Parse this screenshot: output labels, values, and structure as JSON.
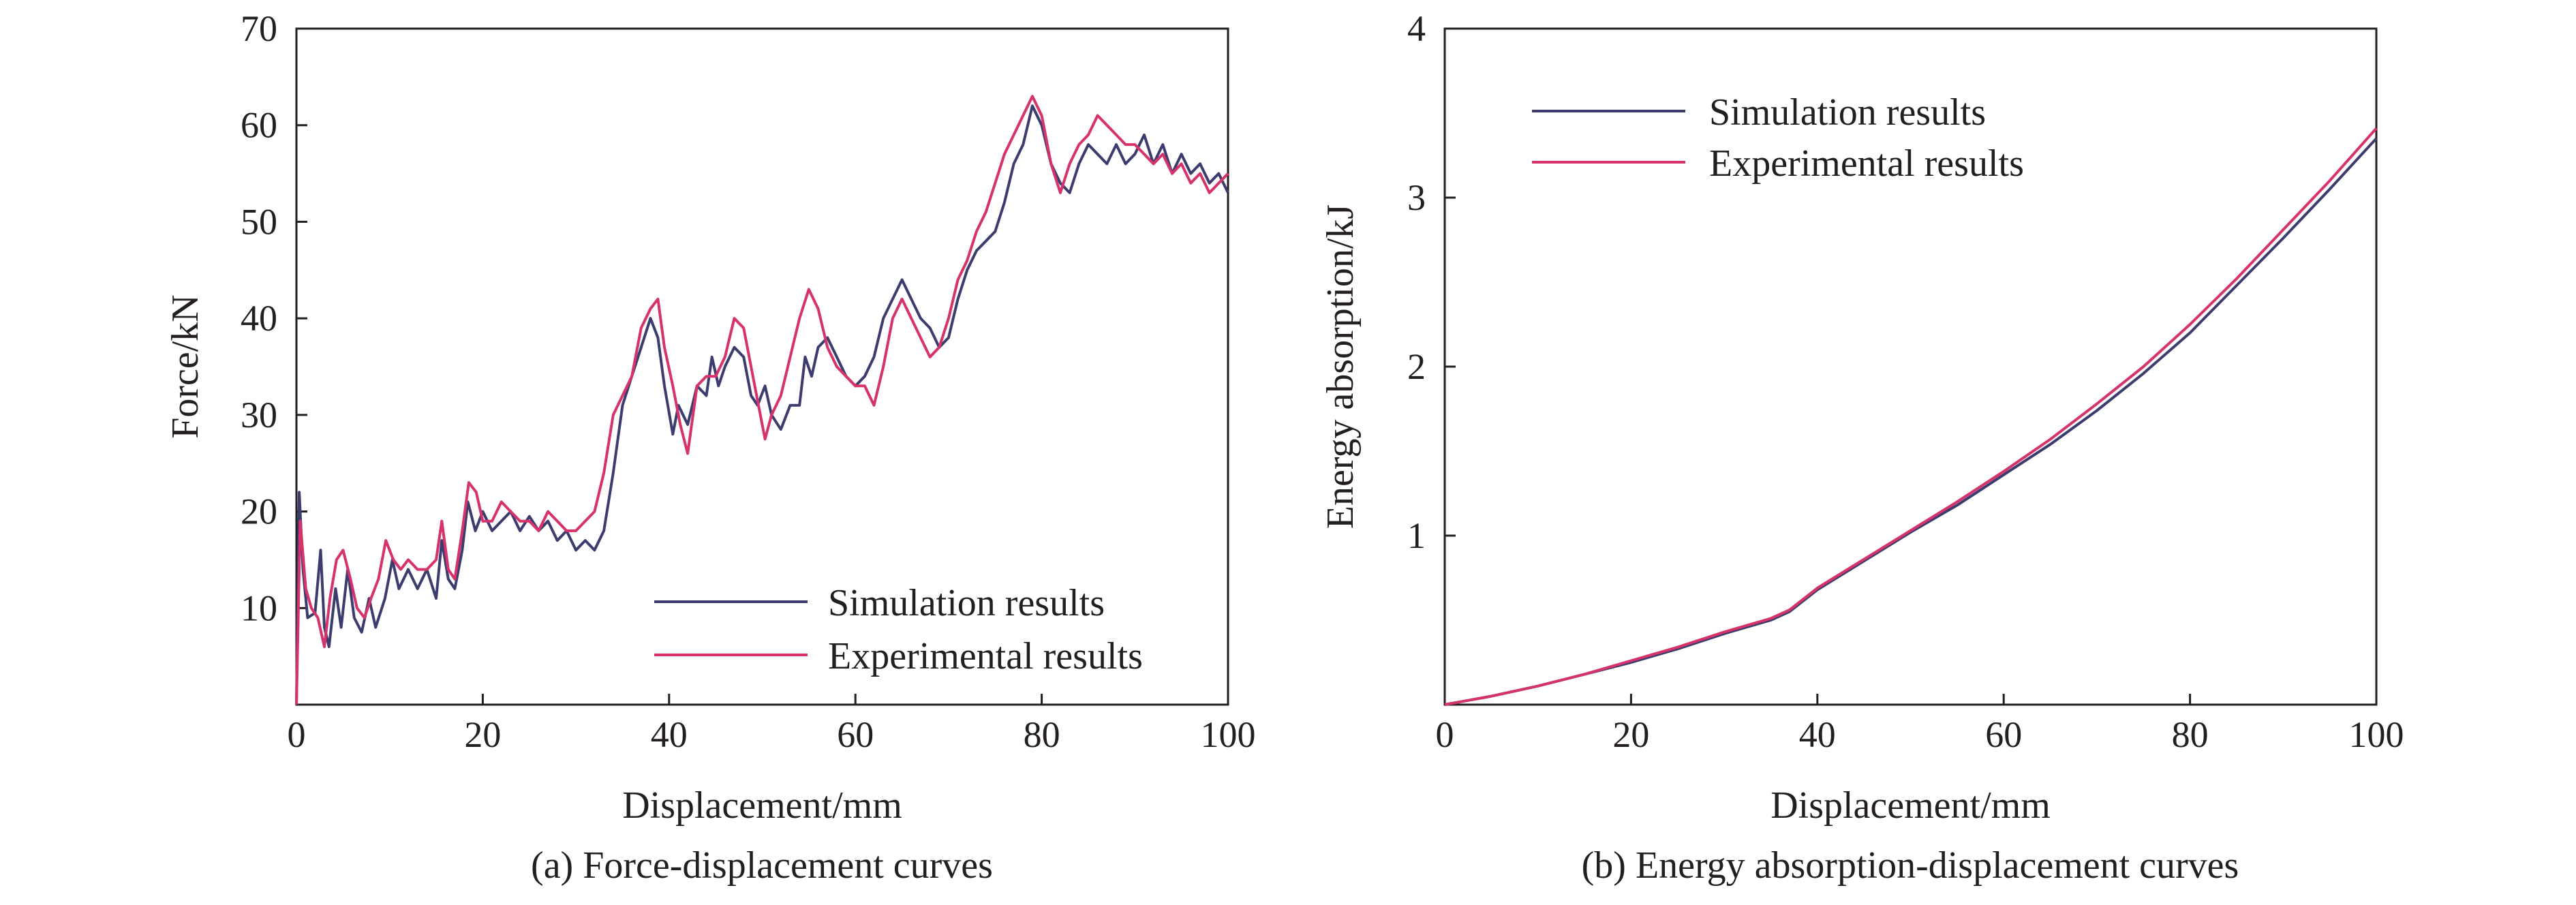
{
  "chart_data": [
    {
      "type": "line",
      "title": "",
      "caption": "(a) Force-displacement curves",
      "xlabel": "Displacement/mm",
      "ylabel": "Force/kN",
      "xlim": [
        0,
        100
      ],
      "ylim": [
        0,
        70
      ],
      "xticks": [
        "0",
        "20",
        "40",
        "60",
        "80",
        "100"
      ],
      "yticks": [
        "10",
        "20",
        "30",
        "40",
        "50",
        "60",
        "70"
      ],
      "grid": false,
      "legend_position": "bottom-right",
      "series": [
        {
          "name": "Simulation results",
          "color": "#3c3c6e",
          "points": [
            [
              0,
              0
            ],
            [
              0.3,
              22
            ],
            [
              0.7,
              14
            ],
            [
              1.2,
              9
            ],
            [
              2,
              9.5
            ],
            [
              2.6,
              16
            ],
            [
              3,
              8
            ],
            [
              3.5,
              6
            ],
            [
              4.2,
              12
            ],
            [
              4.8,
              8
            ],
            [
              5.5,
              14
            ],
            [
              6.2,
              9
            ],
            [
              7,
              7.5
            ],
            [
              7.8,
              11
            ],
            [
              8.5,
              8
            ],
            [
              9.5,
              11
            ],
            [
              10.3,
              15
            ],
            [
              11,
              12
            ],
            [
              12,
              14
            ],
            [
              13,
              12
            ],
            [
              14,
              14
            ],
            [
              15,
              11
            ],
            [
              15.6,
              17
            ],
            [
              16.3,
              13
            ],
            [
              17,
              12
            ],
            [
              17.8,
              16
            ],
            [
              18.4,
              21
            ],
            [
              19.2,
              18
            ],
            [
              20,
              20
            ],
            [
              21,
              18
            ],
            [
              22,
              19
            ],
            [
              23,
              20
            ],
            [
              24,
              18
            ],
            [
              25,
              19.5
            ],
            [
              26,
              18
            ],
            [
              27,
              19
            ],
            [
              28,
              17
            ],
            [
              29,
              18
            ],
            [
              30,
              16
            ],
            [
              31,
              17
            ],
            [
              32,
              16
            ],
            [
              33,
              18
            ],
            [
              34,
              24
            ],
            [
              35,
              31
            ],
            [
              36,
              34
            ],
            [
              37,
              37
            ],
            [
              38,
              40
            ],
            [
              38.8,
              38
            ],
            [
              39.5,
              33
            ],
            [
              40.4,
              28
            ],
            [
              41,
              31
            ],
            [
              42,
              29
            ],
            [
              43,
              33
            ],
            [
              44,
              32
            ],
            [
              44.6,
              36
            ],
            [
              45.3,
              33
            ],
            [
              46,
              35
            ],
            [
              47,
              37
            ],
            [
              48,
              36
            ],
            [
              48.8,
              32
            ],
            [
              49.5,
              31
            ],
            [
              50.3,
              33
            ],
            [
              51,
              30
            ],
            [
              52,
              28.5
            ],
            [
              53,
              31
            ],
            [
              54,
              31
            ],
            [
              54.6,
              36
            ],
            [
              55.3,
              34
            ],
            [
              56,
              37
            ],
            [
              57,
              38
            ],
            [
              58,
              36
            ],
            [
              59,
              34
            ],
            [
              60,
              33
            ],
            [
              61,
              34
            ],
            [
              62,
              36
            ],
            [
              63,
              40
            ],
            [
              64,
              42
            ],
            [
              65,
              44
            ],
            [
              66,
              42
            ],
            [
              67,
              40
            ],
            [
              68,
              39
            ],
            [
              69,
              37
            ],
            [
              70,
              38
            ],
            [
              71,
              42
            ],
            [
              72,
              45
            ],
            [
              73,
              47
            ],
            [
              74,
              48
            ],
            [
              75,
              49
            ],
            [
              76,
              52
            ],
            [
              77,
              56
            ],
            [
              78,
              58
            ],
            [
              79,
              62
            ],
            [
              80,
              60
            ],
            [
              81,
              56
            ],
            [
              82,
              54
            ],
            [
              83,
              53
            ],
            [
              84,
              56
            ],
            [
              85,
              58
            ],
            [
              86,
              57
            ],
            [
              87,
              56
            ],
            [
              88,
              58
            ],
            [
              89,
              56
            ],
            [
              90,
              57
            ],
            [
              91,
              59
            ],
            [
              92,
              56
            ],
            [
              93,
              58
            ],
            [
              94,
              55
            ],
            [
              95,
              57
            ],
            [
              96,
              55
            ],
            [
              97,
              56
            ],
            [
              98,
              54
            ],
            [
              99,
              55
            ],
            [
              100,
              53
            ]
          ]
        },
        {
          "name": "Experimental results",
          "color": "#d6336c",
          "points": [
            [
              0,
              0
            ],
            [
              0.4,
              19
            ],
            [
              1,
              12
            ],
            [
              1.6,
              10
            ],
            [
              2.3,
              9
            ],
            [
              3,
              6
            ],
            [
              3.6,
              11
            ],
            [
              4.3,
              15
            ],
            [
              5,
              16
            ],
            [
              5.8,
              13
            ],
            [
              6.5,
              10
            ],
            [
              7.3,
              9
            ],
            [
              8,
              11
            ],
            [
              8.8,
              13
            ],
            [
              9.6,
              17
            ],
            [
              10.4,
              15
            ],
            [
              11.2,
              14
            ],
            [
              12,
              15
            ],
            [
              13,
              14
            ],
            [
              14,
              14
            ],
            [
              15,
              15
            ],
            [
              15.6,
              19
            ],
            [
              16.3,
              14
            ],
            [
              17,
              13
            ],
            [
              17.8,
              18
            ],
            [
              18.5,
              23
            ],
            [
              19.3,
              22
            ],
            [
              20,
              19
            ],
            [
              21,
              19
            ],
            [
              22,
              21
            ],
            [
              23,
              20
            ],
            [
              24,
              19
            ],
            [
              25,
              19
            ],
            [
              26,
              18
            ],
            [
              27,
              20
            ],
            [
              28,
              19
            ],
            [
              29,
              18
            ],
            [
              30,
              18
            ],
            [
              31,
              19
            ],
            [
              32,
              20
            ],
            [
              33,
              24
            ],
            [
              34,
              30
            ],
            [
              35,
              32
            ],
            [
              36,
              34
            ],
            [
              37,
              39
            ],
            [
              38,
              41
            ],
            [
              38.8,
              42
            ],
            [
              39.5,
              37
            ],
            [
              40.4,
              33
            ],
            [
              41.2,
              29
            ],
            [
              42,
              26
            ],
            [
              43,
              33
            ],
            [
              44,
              34
            ],
            [
              45,
              34
            ],
            [
              46,
              36
            ],
            [
              47,
              40
            ],
            [
              48,
              39
            ],
            [
              48.8,
              35
            ],
            [
              49.6,
              31
            ],
            [
              50.3,
              27.5
            ],
            [
              51,
              30
            ],
            [
              52,
              32
            ],
            [
              53,
              36
            ],
            [
              54,
              40
            ],
            [
              55,
              43
            ],
            [
              56,
              41
            ],
            [
              57,
              37
            ],
            [
              58,
              35
            ],
            [
              59,
              34
            ],
            [
              60,
              33
            ],
            [
              61,
              33
            ],
            [
              62,
              31
            ],
            [
              63,
              35
            ],
            [
              64,
              40
            ],
            [
              65,
              42
            ],
            [
              66,
              40
            ],
            [
              67,
              38
            ],
            [
              68,
              36
            ],
            [
              69,
              37
            ],
            [
              70,
              40
            ],
            [
              71,
              44
            ],
            [
              72,
              46
            ],
            [
              73,
              49
            ],
            [
              74,
              51
            ],
            [
              75,
              54
            ],
            [
              76,
              57
            ],
            [
              77,
              59
            ],
            [
              78,
              61
            ],
            [
              79,
              63
            ],
            [
              80,
              61
            ],
            [
              81,
              56
            ],
            [
              82,
              53
            ],
            [
              83,
              56
            ],
            [
              84,
              58
            ],
            [
              85,
              59
            ],
            [
              86,
              61
            ],
            [
              87,
              60
            ],
            [
              88,
              59
            ],
            [
              89,
              58
            ],
            [
              90,
              58
            ],
            [
              91,
              57
            ],
            [
              92,
              56
            ],
            [
              93,
              57
            ],
            [
              94,
              55
            ],
            [
              95,
              56
            ],
            [
              96,
              54
            ],
            [
              97,
              55
            ],
            [
              98,
              53
            ],
            [
              99,
              54
            ],
            [
              100,
              55
            ]
          ]
        }
      ]
    },
    {
      "type": "line",
      "title": "",
      "caption": "(b) Energy absorption-displacement curves",
      "xlabel": "Displacement/mm",
      "ylabel": "Energy absorption/kJ",
      "xlim": [
        0,
        100
      ],
      "ylim": [
        0,
        4
      ],
      "xticks": [
        "0",
        "20",
        "40",
        "60",
        "80",
        "100"
      ],
      "yticks": [
        "1",
        "2",
        "3",
        "4"
      ],
      "grid": false,
      "legend_position": "top-left",
      "series": [
        {
          "name": "Simulation results",
          "color": "#3c3c6e",
          "points": [
            [
              0,
              0
            ],
            [
              5,
              0.05
            ],
            [
              10,
              0.11
            ],
            [
              15,
              0.18
            ],
            [
              20,
              0.25
            ],
            [
              25,
              0.33
            ],
            [
              30,
              0.42
            ],
            [
              35,
              0.5
            ],
            [
              37,
              0.55
            ],
            [
              40,
              0.68
            ],
            [
              45,
              0.85
            ],
            [
              50,
              1.02
            ],
            [
              55,
              1.18
            ],
            [
              60,
              1.36
            ],
            [
              65,
              1.54
            ],
            [
              70,
              1.74
            ],
            [
              75,
              1.96
            ],
            [
              80,
              2.2
            ],
            [
              85,
              2.48
            ],
            [
              90,
              2.76
            ],
            [
              95,
              3.05
            ],
            [
              100,
              3.35
            ]
          ]
        },
        {
          "name": "Experimental results",
          "color": "#d6336c",
          "points": [
            [
              0,
              0
            ],
            [
              5,
              0.05
            ],
            [
              10,
              0.11
            ],
            [
              15,
              0.18
            ],
            [
              20,
              0.26
            ],
            [
              25,
              0.34
            ],
            [
              30,
              0.43
            ],
            [
              35,
              0.51
            ],
            [
              37,
              0.56
            ],
            [
              40,
              0.69
            ],
            [
              45,
              0.86
            ],
            [
              50,
              1.03
            ],
            [
              55,
              1.2
            ],
            [
              60,
              1.38
            ],
            [
              65,
              1.57
            ],
            [
              70,
              1.78
            ],
            [
              75,
              2
            ],
            [
              80,
              2.25
            ],
            [
              85,
              2.52
            ],
            [
              90,
              2.81
            ],
            [
              95,
              3.1
            ],
            [
              100,
              3.41
            ]
          ]
        }
      ]
    }
  ]
}
